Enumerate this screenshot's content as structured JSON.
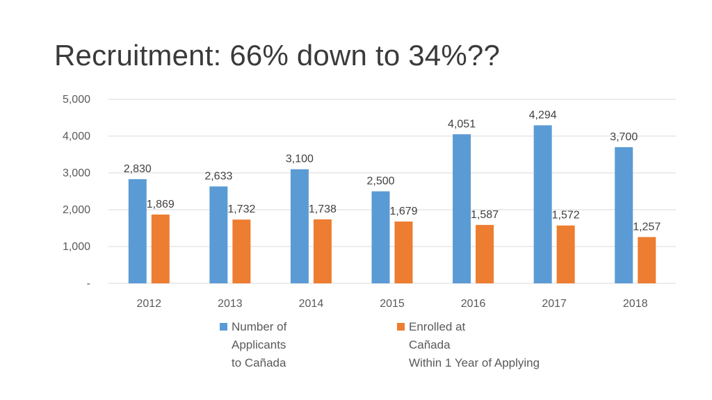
{
  "slide": {
    "title": "Recruitment:  66% down to 34%??"
  },
  "chart_data": {
    "type": "bar",
    "title": "Recruitment:  66% down to 34%??",
    "categories": [
      "2012",
      "2013",
      "2014",
      "2015",
      "2016",
      "2017",
      "2018"
    ],
    "series": [
      {
        "name": "Number of Applicants to Cañada",
        "legend_lines": [
          "Number of",
          "Applicants",
          "to Cañada"
        ],
        "color": "#5b9bd5",
        "values": [
          2830,
          2633,
          3100,
          2500,
          4051,
          4294,
          3700
        ],
        "labels": [
          "2,830",
          "2,633",
          "3,100",
          "2,500",
          "4,051",
          "4,294",
          "3,700"
        ]
      },
      {
        "name": "Enrolled at Cañada Within 1 Year of Applying",
        "legend_lines": [
          "Enrolled at",
          "Cañada",
          "Within 1 Year of Applying"
        ],
        "color": "#ed7d31",
        "values": [
          1869,
          1732,
          1738,
          1679,
          1587,
          1572,
          1257
        ],
        "labels": [
          "1,869",
          "1,732",
          "1,738",
          "1,679",
          "1,587",
          "1,572",
          "1,257"
        ]
      }
    ],
    "ylim": [
      0,
      5000
    ],
    "yticks": [
      0,
      1000,
      2000,
      3000,
      4000,
      5000
    ],
    "ytick_labels": [
      "-",
      "1,000",
      "2,000",
      "3,000",
      "4,000",
      "5,000"
    ],
    "xlabel": "",
    "ylabel": "",
    "grid": true,
    "legend": "bottom"
  }
}
